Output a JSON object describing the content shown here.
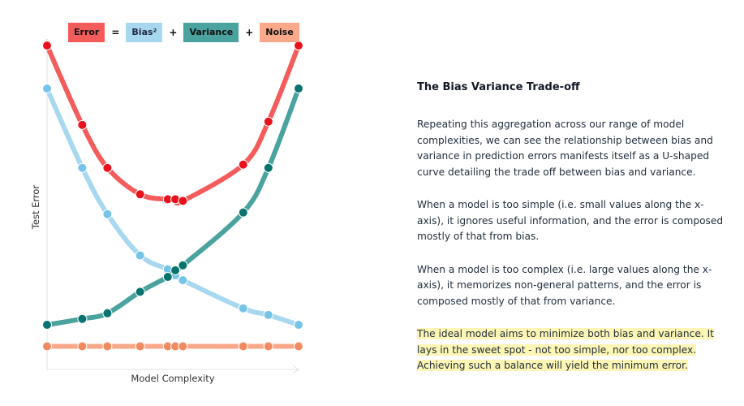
{
  "legend": {
    "items": [
      {
        "label": "Error",
        "color": "#f45c5c",
        "text_color": "#111111"
      },
      {
        "label": "Bias²",
        "color": "#a8d8ef",
        "text_color": "#1f2a44"
      },
      {
        "label": "Variance",
        "color": "#4aa39e",
        "text_color": "#111111"
      },
      {
        "label": "Noise",
        "color": "#f9a98a",
        "text_color": "#111111"
      }
    ],
    "operators": [
      "=",
      "+",
      "+"
    ]
  },
  "chart_data": {
    "type": "line",
    "title": "",
    "xlabel": "Model Complexity",
    "ylabel": "Test Error",
    "x": [
      0,
      14,
      24,
      37,
      48,
      51,
      54,
      78,
      88,
      100
    ],
    "xlim": [
      0,
      100
    ],
    "ylim": [
      0,
      100
    ],
    "grid": false,
    "series": [
      {
        "name": "Error",
        "color": "#f45c5c",
        "marker_color": "#e8121c",
        "values": [
          98,
          74,
          61,
          53,
          51.5,
          51.5,
          51,
          62,
          75,
          98
        ]
      },
      {
        "name": "Bias²",
        "color": "#a8d8ef",
        "marker_color": "#76c4e8",
        "values": [
          85,
          61,
          47,
          34.5,
          30.3,
          28.5,
          27,
          18.5,
          16.5,
          13.5
        ]
      },
      {
        "name": "Variance",
        "color": "#4aa39e",
        "marker_color": "#08736e",
        "values": [
          13.5,
          15.3,
          17,
          23.5,
          28,
          30,
          31.5,
          47.5,
          61,
          85
        ]
      },
      {
        "name": "Noise",
        "color": "#f9a98a",
        "marker_color": "#f28a60",
        "values": [
          7,
          7,
          7,
          7,
          7,
          7,
          7,
          7,
          7,
          7
        ]
      }
    ]
  },
  "panel": {
    "title": "The Bias Variance Trade-off",
    "paragraphs": [
      "Repeating this aggregation across our range of model complexities, we can see the relationship between bias and variance in prediction errors manifests itself as a U-shaped curve detailing the trade off between bias and variance.",
      "When a model is too simple (i.e. small values along the x-axis), it ignores useful information, and the error is composed mostly of that from bias.",
      "When a model is too complex (i.e. large values along the x-axis), it memorizes non-general patterns, and the error is composed mostly of that from variance."
    ],
    "highlight": "The ideal model aims to minimize both bias and variance. It lays in the sweet spot - not too simple, nor too complex. Achieving such a balance will yield the minimum error."
  }
}
